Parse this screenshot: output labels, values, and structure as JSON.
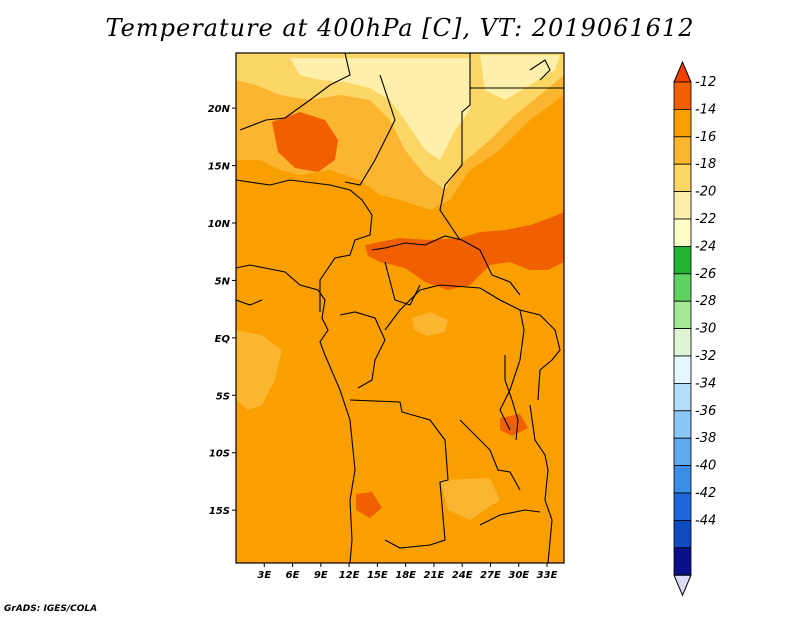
{
  "title": "Temperature at 400hPa [C], VT: 2019061612",
  "credit": "GrADS: IGES/COLA",
  "map": {
    "lat_labels": [
      "20N",
      "15N",
      "10N",
      "5N",
      "EQ",
      "5S",
      "10S",
      "15S"
    ],
    "lon_labels": [
      "3E",
      "6E",
      "9E",
      "12E",
      "15E",
      "18E",
      "21E",
      "24E",
      "27E",
      "30E",
      "33E"
    ],
    "lat_values": [
      20,
      15,
      10,
      5,
      0,
      -5,
      -10,
      -15
    ],
    "lon_values": [
      3,
      6,
      9,
      12,
      15,
      18,
      21,
      24,
      27,
      30,
      33
    ],
    "lat_range": [
      -19.6,
      24.8
    ],
    "lon_range": [
      0,
      34.8
    ],
    "field_colors": {
      "t12": "#f06000",
      "t14": "#f99f00",
      "t16": "#fbb530",
      "t18": "#fdd765",
      "t20": "#fef0aa"
    }
  },
  "colorbar": {
    "labels": [
      "-12",
      "-14",
      "-16",
      "-18",
      "-20",
      "-22",
      "-24",
      "-26",
      "-28",
      "-30",
      "-32",
      "-34",
      "-36",
      "-38",
      "-40",
      "-42",
      "-44"
    ],
    "colors": [
      "#f06000",
      "#f99f00",
      "#fbb530",
      "#fdd765",
      "#fef0aa",
      "#fdfdc9",
      "#25b334",
      "#5fd361",
      "#a2e895",
      "#dff5d5",
      "#e5f8ff",
      "#b5dcf8",
      "#8bc6f5",
      "#5ea9ef",
      "#3a8ee8",
      "#1f67da",
      "#0f4bbf",
      "#08118a"
    ],
    "over_color": "#f04000",
    "under_color": "#dcdcf6"
  }
}
